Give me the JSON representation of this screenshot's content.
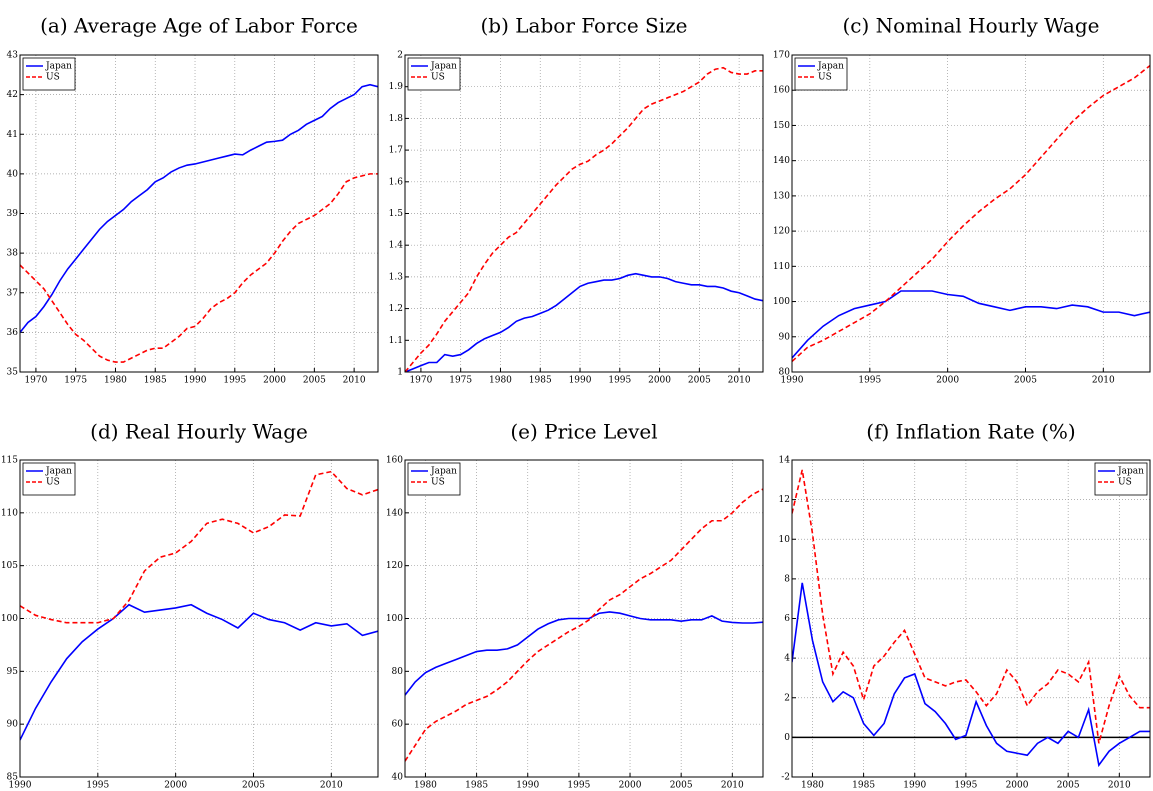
{
  "chart_data": [
    {
      "type": "line",
      "title": "(a)  Average Age of Labor Force",
      "x": [
        1968,
        1969,
        1970,
        1971,
        1972,
        1973,
        1974,
        1975,
        1976,
        1977,
        1978,
        1979,
        1980,
        1981,
        1982,
        1983,
        1984,
        1985,
        1986,
        1987,
        1988,
        1989,
        1990,
        1991,
        1992,
        1993,
        1994,
        1995,
        1996,
        1997,
        1998,
        1999,
        2000,
        2001,
        2002,
        2003,
        2004,
        2005,
        2006,
        2007,
        2008,
        2009,
        2010,
        2011,
        2012,
        2013
      ],
      "xlim": [
        1968,
        2013
      ],
      "xticks": [
        1970,
        1975,
        1980,
        1985,
        1990,
        1995,
        2000,
        2005,
        2010
      ],
      "ylim": [
        35,
        43
      ],
      "yticks": [
        35,
        36,
        37,
        38,
        39,
        40,
        41,
        42,
        43
      ],
      "grid": true,
      "legend": "upper left",
      "series": [
        {
          "name": "Japan",
          "color": "#0000ff",
          "line_style": "solid",
          "values": [
            36.0,
            36.25,
            36.4,
            36.65,
            36.95,
            37.3,
            37.6,
            37.85,
            38.1,
            38.35,
            38.6,
            38.8,
            38.95,
            39.1,
            39.3,
            39.45,
            39.6,
            39.8,
            39.9,
            40.05,
            40.15,
            40.22,
            40.25,
            40.3,
            40.35,
            40.4,
            40.45,
            40.5,
            40.48,
            40.6,
            40.7,
            40.8,
            40.82,
            40.85,
            41.0,
            41.1,
            41.25,
            41.35,
            41.45,
            41.65,
            41.8,
            41.9,
            42.0,
            42.2,
            42.25,
            42.2
          ]
        },
        {
          "name": "US",
          "color": "#ff0000",
          "line_style": "dashed",
          "values": [
            37.7,
            37.5,
            37.3,
            37.1,
            36.8,
            36.5,
            36.2,
            35.95,
            35.8,
            35.6,
            35.4,
            35.3,
            35.25,
            35.25,
            35.35,
            35.45,
            35.55,
            35.6,
            35.6,
            35.75,
            35.9,
            36.1,
            36.15,
            36.35,
            36.6,
            36.75,
            36.85,
            37.0,
            37.25,
            37.45,
            37.6,
            37.75,
            38.0,
            38.3,
            38.55,
            38.75,
            38.85,
            38.95,
            39.1,
            39.25,
            39.5,
            39.8,
            39.9,
            39.95,
            40.0,
            40.0
          ]
        }
      ]
    },
    {
      "type": "line",
      "title": "(b)  Labor Force Size",
      "x": [
        1968,
        1969,
        1970,
        1971,
        1972,
        1973,
        1974,
        1975,
        1976,
        1977,
        1978,
        1979,
        1980,
        1981,
        1982,
        1983,
        1984,
        1985,
        1986,
        1987,
        1988,
        1989,
        1990,
        1991,
        1992,
        1993,
        1994,
        1995,
        1996,
        1997,
        1998,
        1999,
        2000,
        2001,
        2002,
        2003,
        2004,
        2005,
        2006,
        2007,
        2008,
        2009,
        2010,
        2011,
        2012,
        2013
      ],
      "xlim": [
        1968,
        2013
      ],
      "xticks": [
        1970,
        1975,
        1980,
        1985,
        1990,
        1995,
        2000,
        2005,
        2010
      ],
      "ylim": [
        1,
        2
      ],
      "yticks": [
        1,
        1.1,
        1.2,
        1.3,
        1.4,
        1.5,
        1.6,
        1.7,
        1.8,
        1.9,
        2
      ],
      "grid": true,
      "legend": "upper left",
      "series": [
        {
          "name": "Japan",
          "color": "#0000ff",
          "line_style": "solid",
          "values": [
            1.0,
            1.01,
            1.02,
            1.03,
            1.03,
            1.055,
            1.05,
            1.055,
            1.07,
            1.09,
            1.105,
            1.115,
            1.125,
            1.14,
            1.16,
            1.17,
            1.175,
            1.185,
            1.195,
            1.21,
            1.23,
            1.25,
            1.27,
            1.28,
            1.285,
            1.29,
            1.29,
            1.295,
            1.305,
            1.31,
            1.305,
            1.3,
            1.3,
            1.295,
            1.285,
            1.28,
            1.275,
            1.275,
            1.27,
            1.27,
            1.265,
            1.255,
            1.25,
            1.24,
            1.23,
            1.225
          ]
        },
        {
          "name": "US",
          "color": "#ff0000",
          "line_style": "dashed",
          "values": [
            1.0,
            1.03,
            1.06,
            1.085,
            1.12,
            1.16,
            1.19,
            1.22,
            1.25,
            1.3,
            1.34,
            1.375,
            1.4,
            1.425,
            1.44,
            1.47,
            1.5,
            1.53,
            1.56,
            1.59,
            1.615,
            1.64,
            1.655,
            1.665,
            1.685,
            1.7,
            1.72,
            1.745,
            1.77,
            1.8,
            1.83,
            1.845,
            1.855,
            1.865,
            1.875,
            1.885,
            1.9,
            1.915,
            1.94,
            1.955,
            1.96,
            1.945,
            1.94,
            1.94,
            1.95,
            1.95
          ]
        }
      ]
    },
    {
      "type": "line",
      "title": "(c)  Nominal Hourly Wage",
      "x": [
        1990,
        1991,
        1992,
        1993,
        1994,
        1995,
        1996,
        1997,
        1998,
        1999,
        2000,
        2001,
        2002,
        2003,
        2004,
        2005,
        2006,
        2007,
        2008,
        2009,
        2010,
        2011,
        2012,
        2013
      ],
      "xlim": [
        1990,
        2013
      ],
      "xticks": [
        1990,
        1995,
        2000,
        2005,
        2010
      ],
      "ylim": [
        80,
        170
      ],
      "yticks": [
        80,
        90,
        100,
        110,
        120,
        130,
        140,
        150,
        160,
        170
      ],
      "grid": true,
      "legend": "upper left",
      "series": [
        {
          "name": "Japan",
          "color": "#0000ff",
          "line_style": "solid",
          "values": [
            84,
            89,
            93,
            96,
            98,
            99,
            100,
            103,
            103,
            103,
            102,
            101.5,
            99.5,
            98.5,
            97.5,
            98.5,
            98.5,
            98,
            99,
            98.5,
            97,
            97,
            96,
            97
          ]
        },
        {
          "name": "US",
          "color": "#ff0000",
          "line_style": "dashed",
          "values": [
            83,
            87,
            89,
            91.5,
            94,
            96.5,
            100,
            104,
            108,
            112,
            117,
            121.5,
            125.5,
            129,
            132,
            136,
            141,
            146,
            151,
            155,
            158.5,
            161,
            163.5,
            167
          ]
        }
      ]
    },
    {
      "type": "line",
      "title": "(d)  Real Hourly Wage",
      "x": [
        1990,
        1991,
        1992,
        1993,
        1994,
        1995,
        1996,
        1997,
        1998,
        1999,
        2000,
        2001,
        2002,
        2003,
        2004,
        2005,
        2006,
        2007,
        2008,
        2009,
        2010,
        2011,
        2012,
        2013
      ],
      "xlim": [
        1990,
        2013
      ],
      "xticks": [
        1990,
        1995,
        2000,
        2005,
        2010
      ],
      "ylim": [
        85,
        115
      ],
      "yticks": [
        85,
        90,
        95,
        100,
        105,
        110,
        115
      ],
      "grid": true,
      "legend": "upper left",
      "series": [
        {
          "name": "Japan",
          "color": "#0000ff",
          "line_style": "solid",
          "values": [
            88.5,
            91.5,
            94,
            96.2,
            97.8,
            99,
            100,
            101.3,
            100.6,
            100.8,
            101,
            101.3,
            100.5,
            99.9,
            99.1,
            100.5,
            99.9,
            99.6,
            98.9,
            99.6,
            99.3,
            99.5,
            98.4,
            98.8
          ]
        },
        {
          "name": "US",
          "color": "#ff0000",
          "line_style": "dashed",
          "values": [
            101.2,
            100.3,
            99.9,
            99.6,
            99.6,
            99.6,
            100,
            101.7,
            104.5,
            105.8,
            106.2,
            107.3,
            109,
            109.4,
            109,
            108.1,
            108.7,
            109.8,
            109.7,
            113.6,
            113.9,
            112.3,
            111.7,
            112.2
          ]
        }
      ]
    },
    {
      "type": "line",
      "title": "(e)  Price Level",
      "x": [
        1978,
        1979,
        1980,
        1981,
        1982,
        1983,
        1984,
        1985,
        1986,
        1987,
        1988,
        1989,
        1990,
        1991,
        1992,
        1993,
        1994,
        1995,
        1996,
        1997,
        1998,
        1999,
        2000,
        2001,
        2002,
        2003,
        2004,
        2005,
        2006,
        2007,
        2008,
        2009,
        2010,
        2011,
        2012,
        2013
      ],
      "xlim": [
        1978,
        2013
      ],
      "xticks": [
        1980,
        1985,
        1990,
        1995,
        2000,
        2005,
        2010
      ],
      "ylim": [
        40,
        160
      ],
      "yticks": [
        40,
        60,
        80,
        100,
        120,
        140,
        160
      ],
      "grid": true,
      "legend": "upper left",
      "series": [
        {
          "name": "Japan",
          "color": "#0000ff",
          "line_style": "solid",
          "values": [
            71,
            76,
            79.5,
            81.5,
            83,
            84.5,
            86,
            87.5,
            88,
            88,
            88.5,
            90,
            93,
            96,
            98,
            99.5,
            100,
            100,
            100,
            102,
            102.5,
            102,
            101,
            100,
            99.5,
            99.5,
            99.5,
            99,
            99.5,
            99.5,
            101,
            99,
            98.5,
            98.3,
            98.3,
            98.6
          ]
        },
        {
          "name": "US",
          "color": "#ff0000",
          "line_style": "dashed",
          "values": [
            46,
            52,
            58,
            61,
            63,
            65,
            67.5,
            69,
            70.5,
            73,
            76,
            80,
            84,
            87.5,
            90,
            92.5,
            95,
            97,
            99.5,
            103.5,
            107,
            109,
            112,
            115,
            117,
            119.5,
            122,
            126,
            130,
            134,
            137,
            137,
            140,
            144,
            147,
            149
          ]
        }
      ]
    },
    {
      "type": "line",
      "title": "(f)  Inflation Rate (%)",
      "x": [
        1978,
        1979,
        1980,
        1981,
        1982,
        1983,
        1984,
        1985,
        1986,
        1987,
        1988,
        1989,
        1990,
        1991,
        1992,
        1993,
        1994,
        1995,
        1996,
        1997,
        1998,
        1999,
        2000,
        2001,
        2002,
        2003,
        2004,
        2005,
        2006,
        2007,
        2008,
        2009,
        2010,
        2011,
        2012,
        2013
      ],
      "xlim": [
        1978,
        2013
      ],
      "xticks": [
        1980,
        1985,
        1990,
        1995,
        2000,
        2005,
        2010
      ],
      "ylim": [
        -2,
        14
      ],
      "yticks": [
        -2,
        0,
        2,
        4,
        6,
        8,
        10,
        12,
        14
      ],
      "grid": true,
      "legend": "upper right",
      "reference_line": 0,
      "series": [
        {
          "name": "Japan",
          "color": "#0000ff",
          "line_style": "solid",
          "values": [
            3.8,
            7.8,
            4.9,
            2.8,
            1.8,
            2.3,
            2.0,
            0.7,
            0.1,
            0.7,
            2.2,
            3.0,
            3.2,
            1.7,
            1.3,
            0.7,
            -0.1,
            0.1,
            1.8,
            0.6,
            -0.3,
            -0.7,
            -0.8,
            -0.9,
            -0.3,
            0,
            -0.3,
            0.3,
            0,
            1.4,
            -1.4,
            -0.7,
            -0.3,
            0,
            0.3,
            0.3
          ]
        },
        {
          "name": "US",
          "color": "#ff0000",
          "line_style": "dashed",
          "values": [
            11.3,
            13.5,
            10.3,
            6.2,
            3.2,
            4.3,
            3.6,
            1.9,
            3.6,
            4.1,
            4.8,
            5.4,
            4.2,
            3.0,
            2.8,
            2.6,
            2.8,
            2.9,
            2.3,
            1.6,
            2.2,
            3.4,
            2.8,
            1.6,
            2.3,
            2.7,
            3.4,
            3.2,
            2.8,
            3.8,
            -0.3,
            1.6,
            3.1,
            2.1,
            1.5,
            1.5
          ]
        }
      ]
    }
  ]
}
